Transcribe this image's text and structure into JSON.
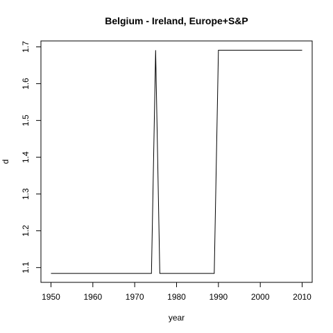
{
  "chart_data": {
    "type": "line",
    "title": "Belgium - Ireland, Europe+S&P",
    "xlabel": "year",
    "ylabel": "d",
    "xlim": [
      1947.6,
      2012.4
    ],
    "ylim": [
      1.0598,
      1.7162
    ],
    "x_ticks": [
      1950,
      1960,
      1970,
      1980,
      1990,
      2000,
      2010
    ],
    "y_ticks": [
      1.1,
      1.2,
      1.3,
      1.4,
      1.5,
      1.6,
      1.7
    ],
    "grid": false,
    "series": [
      {
        "name": "d",
        "x": [
          1950,
          1974,
          1975,
          1976,
          1989,
          1990,
          2010
        ],
        "y": [
          1.084,
          1.084,
          1.691,
          1.084,
          1.084,
          1.691,
          1.691
        ]
      }
    ]
  }
}
